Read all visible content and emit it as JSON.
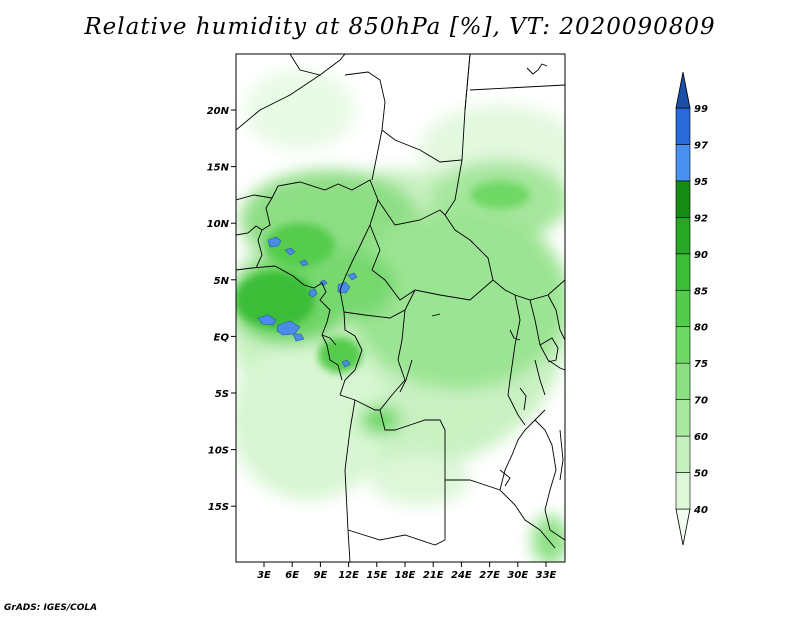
{
  "title": "Relative humidity at 850hPa [%], VT: 2020090809",
  "credit": "GrADS: IGES/COLA",
  "map": {
    "lat_labels": [
      "20N",
      "15N",
      "10N",
      "5N",
      "EQ",
      "5S",
      "10S",
      "15S"
    ],
    "lon_labels": [
      "3E",
      "6E",
      "9E",
      "12E",
      "15E",
      "18E",
      "21E",
      "24E",
      "27E",
      "30E",
      "33E"
    ]
  },
  "colorbar": {
    "levels": [
      "40",
      "50",
      "60",
      "70",
      "75",
      "80",
      "85",
      "90",
      "92",
      "95",
      "97",
      "99"
    ],
    "colors": [
      "#f2fdf0",
      "#ddf7d8",
      "#c5f0bd",
      "#a9e8a0",
      "#8ce083",
      "#6fd865",
      "#54cc4b",
      "#3bbd37",
      "#26a826",
      "#168c17",
      "#4a90f0",
      "#2a6ad8",
      "#1e4fa8"
    ]
  },
  "colors": {
    "humid_high": "#4a8ae8",
    "land_border": "#000000",
    "background": "#ffffff"
  }
}
